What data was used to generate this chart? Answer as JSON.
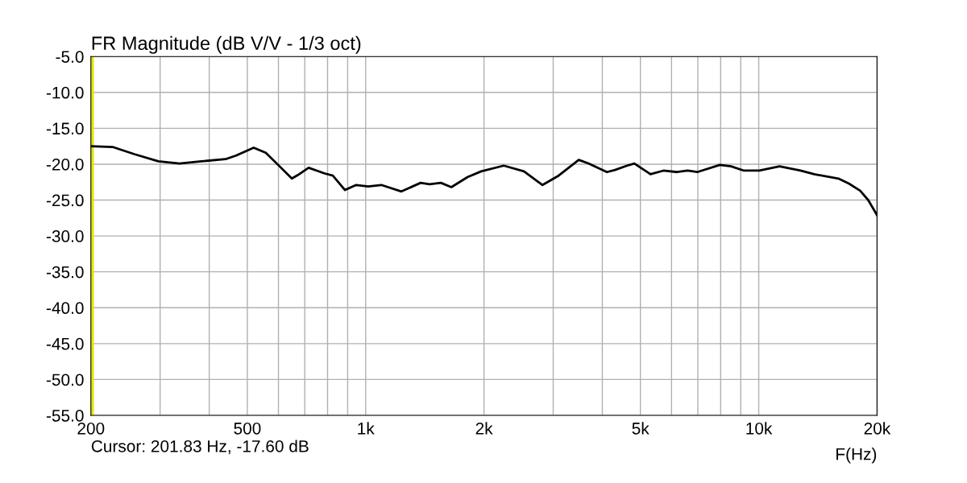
{
  "chart_data": {
    "type": "line",
    "title": "FR Magnitude (dB V/V - 1/3 oct)",
    "xlabel": "F(Hz)",
    "annotations": [
      "Cursor: 201.83 Hz, -17.60 dB"
    ],
    "log": "x",
    "grid": true,
    "line_style": "solid",
    "marker": "none",
    "xlim": [
      200,
      20000
    ],
    "xticks": [
      200,
      {
        "value": 300,
        "label": null
      },
      {
        "value": 400,
        "label": null
      },
      500,
      {
        "value": 600,
        "label": null
      },
      {
        "value": 700,
        "label": null
      },
      {
        "value": 800,
        "label": null
      },
      {
        "value": 900,
        "label": null
      },
      {
        "value": 1000,
        "label": "1k"
      },
      {
        "value": 2000,
        "label": "2k"
      },
      {
        "value": 3000,
        "label": null
      },
      {
        "value": 4000,
        "label": null
      },
      {
        "value": 5000,
        "label": "5k"
      },
      {
        "value": 6000,
        "label": null
      },
      {
        "value": 7000,
        "label": null
      },
      {
        "value": 8000,
        "label": null
      },
      {
        "value": 9000,
        "label": null
      },
      {
        "value": 10000,
        "label": "10k"
      },
      {
        "value": 20000,
        "label": "20k"
      }
    ],
    "ylim": [
      -55,
      -5
    ],
    "yticks": [
      {
        "value": -55,
        "label": "-55.0"
      },
      {
        "value": -50,
        "label": "-50.0"
      },
      {
        "value": -45,
        "label": "-45.0"
      },
      {
        "value": -40,
        "label": "-40.0"
      },
      {
        "value": -35,
        "label": "-35.0"
      },
      {
        "value": -30,
        "label": "-30.0"
      },
      {
        "value": -25,
        "label": "-25.0"
      },
      {
        "value": -20,
        "label": "-20.0"
      },
      {
        "value": -15,
        "label": "-15.0"
      },
      {
        "value": -10,
        "label": "-10.0"
      },
      {
        "value": -5,
        "label": "-5.0"
      }
    ],
    "ref_lines": [
      {
        "axis": "x",
        "value": 201.83,
        "color": "#e6e600"
      }
    ],
    "series": [
      {
        "color": "#000000",
        "x": [
          200,
          227,
          258,
          297,
          336,
          382,
          440,
          468,
          519,
          557,
          604,
          649,
          673,
          716,
          787,
          825,
          886,
          946,
          1015,
          1096,
          1233,
          1380,
          1454,
          1554,
          1652,
          1816,
          1967,
          2246,
          2528,
          2818,
          3097,
          3484,
          3688,
          4110,
          4309,
          4626,
          4826,
          5304,
          5720,
          6200,
          6592,
          6974,
          7962,
          8507,
          9172,
          10034,
          11294,
          12772,
          13836,
          15944,
          16952,
          18112,
          18986,
          20000
        ],
        "values": [
          -17.5,
          -17.6,
          -18.6,
          -19.6,
          -19.9,
          -19.6,
          -19.3,
          -18.8,
          -17.7,
          -18.4,
          -20.3,
          -22.0,
          -21.5,
          -20.5,
          -21.3,
          -21.6,
          -23.6,
          -22.9,
          -23.1,
          -22.9,
          -23.8,
          -22.6,
          -22.8,
          -22.6,
          -23.2,
          -21.8,
          -21.0,
          -20.2,
          -21.0,
          -22.9,
          -21.6,
          -19.4,
          -19.9,
          -21.1,
          -20.8,
          -20.2,
          -19.9,
          -21.4,
          -20.9,
          -21.1,
          -20.9,
          -21.1,
          -20.1,
          -20.3,
          -20.9,
          -20.9,
          -20.3,
          -20.9,
          -21.4,
          -22.0,
          -22.7,
          -23.7,
          -25.0,
          -27.1
        ]
      }
    ]
  }
}
